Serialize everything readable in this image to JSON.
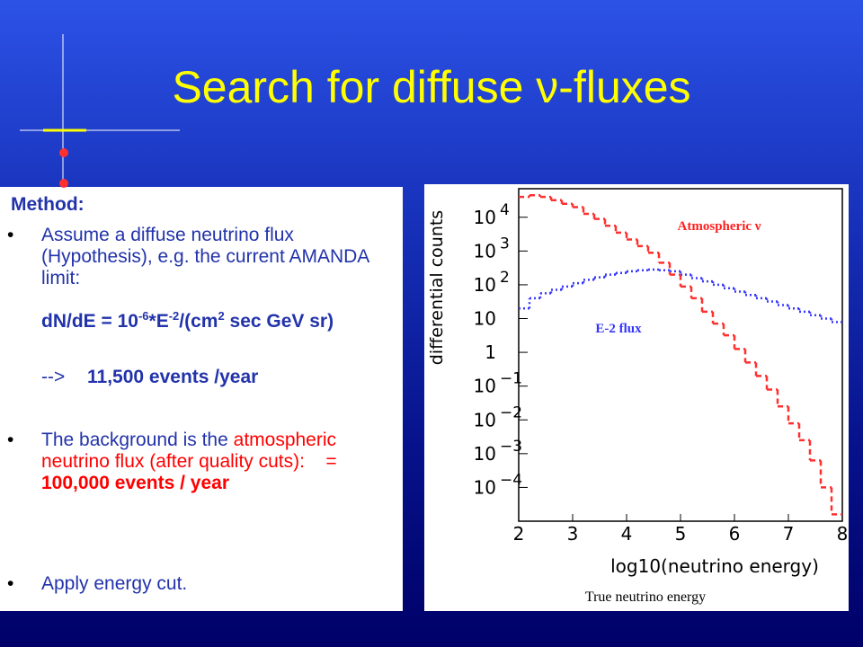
{
  "title": "Search for diffuse ν-fluxes",
  "method": {
    "heading": "Method:",
    "bullet_1": "Assume a diffuse neutrino flux (Hypothesis), e.g. the current AMANDA limit:",
    "formula": [
      "dN/dE = 10",
      "-6",
      "*E",
      "-2",
      "/(cm",
      "2",
      " sec GeV sr)"
    ],
    "arrow": "-->",
    "events": "11,500 events /year",
    "bullet_2": {
      "plain": "The background is the",
      "red": "atmospheric neutrino flux (after quality cuts):",
      "equals": "= ",
      "bold": "100,000 events / year"
    },
    "bullet_3": "Apply energy cut."
  },
  "chart_data": {
    "type": "histogram",
    "xlabel": "log10(neutrino energy)",
    "ylabel": "differential counts",
    "annotations": {
      "atmospheric": "Atmospheric ν",
      "e2": "E-2 flux",
      "caption": "True neutrino energy"
    },
    "bins": [
      2.0,
      2.2,
      2.4,
      2.6,
      2.8,
      3.0,
      3.2,
      3.4,
      3.6,
      3.8,
      4.0,
      4.2,
      4.4,
      4.6,
      4.8,
      5.0,
      5.2,
      5.4,
      5.6,
      5.8,
      6.0,
      6.2,
      6.4,
      6.6,
      6.8,
      7.0,
      7.2,
      7.4,
      7.6,
      7.8,
      8.0
    ],
    "series": [
      {
        "name": "Atmospheric ν",
        "color": "#ff3030",
        "style": "dashed",
        "values": [
          40000,
          45000,
          40000,
          32000,
          25000,
          20000,
          12600,
          8900,
          5600,
          3500,
          2200,
          1400,
          890,
          450,
          200,
          89,
          40,
          16,
          7.1,
          3.2,
          1.26,
          0.5,
          0.2,
          0.079,
          0.025,
          0.0079,
          0.0025,
          0.00063,
          0.0001,
          1.6e-05
        ]
      },
      {
        "name": "E-2 flux",
        "color": "#3a3aff",
        "style": "dotted",
        "values": [
          20,
          40,
          56,
          71,
          89,
          112,
          141,
          166,
          200,
          224,
          251,
          269,
          282,
          269,
          251,
          200,
          158,
          126,
          100,
          79,
          63,
          50,
          40,
          32,
          25,
          20,
          16,
          12.6,
          10,
          7.9
        ]
      }
    ],
    "xlim": [
      2,
      8
    ],
    "xticks": [
      2,
      3,
      4,
      5,
      6,
      7,
      8
    ],
    "ylim": [
      1e-05,
      70000
    ],
    "ylog": true,
    "yticks": [
      {
        "value": 10000,
        "label": "10",
        "exponent": "4"
      },
      {
        "value": 1000,
        "label": "10",
        "exponent": "3"
      },
      {
        "value": 100,
        "label": "10",
        "exponent": "2"
      },
      10,
      1,
      {
        "value": 0.1,
        "label": "10",
        "exponent": "−1"
      },
      {
        "value": 0.01,
        "label": "10",
        "exponent": "−2"
      },
      {
        "value": 0.001,
        "label": "10",
        "exponent": "−3"
      },
      {
        "value": 0.0001,
        "label": "10",
        "exponent": "−4"
      }
    ]
  }
}
